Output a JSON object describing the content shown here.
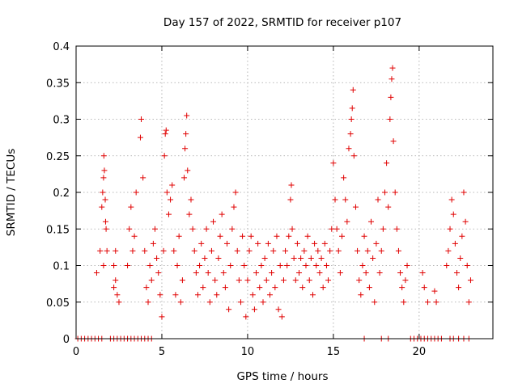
{
  "chart_data": {
    "type": "scatter",
    "title": "Day 157 of 2022, SRMTID for receiver p107",
    "xlabel": "GPS time / hours",
    "ylabel": "SRMTID / TECUs",
    "xlim": [
      0,
      24.3
    ],
    "ylim": [
      0,
      0.4
    ],
    "xticks": [
      "0",
      "5",
      "10",
      "15",
      "20"
    ],
    "xtick_values": [
      0,
      5,
      10,
      15,
      20
    ],
    "yticks": [
      "0",
      "0.05",
      "0.1",
      "0.15",
      "0.2",
      "0.25",
      "0.3",
      "0.35",
      "0.4"
    ],
    "ytick_values": [
      0,
      0.05,
      0.1,
      0.15,
      0.2,
      0.25,
      0.3,
      0.35,
      0.4
    ],
    "grid": true,
    "marker": "plus",
    "color": "#e00000",
    "series": [
      {
        "name": "SRMTID",
        "points": [
          [
            0.1,
            0
          ],
          [
            0.3,
            0
          ],
          [
            0.5,
            0
          ],
          [
            0.7,
            0
          ],
          [
            0.9,
            0
          ],
          [
            1.1,
            0
          ],
          [
            1.3,
            0
          ],
          [
            1.5,
            0
          ],
          [
            1.2,
            0.09
          ],
          [
            1.4,
            0.12
          ],
          [
            1.5,
            0.18
          ],
          [
            1.55,
            0.2
          ],
          [
            1.6,
            0.22
          ],
          [
            1.62,
            0.25
          ],
          [
            1.65,
            0.23
          ],
          [
            1.7,
            0.19
          ],
          [
            1.72,
            0.16
          ],
          [
            1.75,
            0.15
          ],
          [
            1.8,
            0.12
          ],
          [
            1.6,
            0.1
          ],
          [
            2.0,
            0
          ],
          [
            2.2,
            0
          ],
          [
            2.4,
            0
          ],
          [
            2.6,
            0
          ],
          [
            2.8,
            0
          ],
          [
            2.2,
            0.07
          ],
          [
            2.3,
            0.08
          ],
          [
            2.4,
            0.06
          ],
          [
            2.5,
            0.05
          ],
          [
            2.2,
            0.1
          ],
          [
            2.3,
            0.12
          ],
          [
            3.0,
            0.1
          ],
          [
            3.1,
            0.15
          ],
          [
            3.2,
            0.18
          ],
          [
            3.3,
            0.12
          ],
          [
            3.4,
            0.14
          ],
          [
            3.5,
            0.2
          ],
          [
            3.0,
            0
          ],
          [
            3.2,
            0
          ],
          [
            3.4,
            0
          ],
          [
            3.6,
            0
          ],
          [
            3.8,
            0
          ],
          [
            4.0,
            0
          ],
          [
            4.2,
            0
          ],
          [
            4.4,
            0
          ],
          [
            3.8,
            0.3
          ],
          [
            3.75,
            0.275
          ],
          [
            3.9,
            0.22
          ],
          [
            4.0,
            0.12
          ],
          [
            4.1,
            0.07
          ],
          [
            4.2,
            0.05
          ],
          [
            4.3,
            0.1
          ],
          [
            4.4,
            0.08
          ],
          [
            4.5,
            0.13
          ],
          [
            4.6,
            0.15
          ],
          [
            4.7,
            0.11
          ],
          [
            4.8,
            0.09
          ],
          [
            4.9,
            0.06
          ],
          [
            5.0,
            0.03
          ],
          [
            5.1,
            0.12
          ],
          [
            5.15,
            0.25
          ],
          [
            5.2,
            0.28
          ],
          [
            5.25,
            0.285
          ],
          [
            5.3,
            0.2
          ],
          [
            5.4,
            0.17
          ],
          [
            5.5,
            0.19
          ],
          [
            5.6,
            0.21
          ],
          [
            5.7,
            0.12
          ],
          [
            5.8,
            0.06
          ],
          [
            5.9,
            0.1
          ],
          [
            6.0,
            0.14
          ],
          [
            6.1,
            0.05
          ],
          [
            6.2,
            0.08
          ],
          [
            6.3,
            0.22
          ],
          [
            6.35,
            0.26
          ],
          [
            6.4,
            0.28
          ],
          [
            6.45,
            0.305
          ],
          [
            6.5,
            0.23
          ],
          [
            6.6,
            0.17
          ],
          [
            6.7,
            0.19
          ],
          [
            6.8,
            0.15
          ],
          [
            6.9,
            0.12
          ],
          [
            7.0,
            0.09
          ],
          [
            7.1,
            0.06
          ],
          [
            7.2,
            0.1
          ],
          [
            7.3,
            0.13
          ],
          [
            7.4,
            0.07
          ],
          [
            7.5,
            0.11
          ],
          [
            7.6,
            0.15
          ],
          [
            7.7,
            0.09
          ],
          [
            7.8,
            0.05
          ],
          [
            7.9,
            0.12
          ],
          [
            8.0,
            0.16
          ],
          [
            8.1,
            0.08
          ],
          [
            8.2,
            0.06
          ],
          [
            8.3,
            0.11
          ],
          [
            8.4,
            0.14
          ],
          [
            8.5,
            0.17
          ],
          [
            8.6,
            0.09
          ],
          [
            8.7,
            0.07
          ],
          [
            8.8,
            0.13
          ],
          [
            8.9,
            0.04
          ],
          [
            9.0,
            0.1
          ],
          [
            9.1,
            0.15
          ],
          [
            9.2,
            0.18
          ],
          [
            9.3,
            0.2
          ],
          [
            9.4,
            0.12
          ],
          [
            9.5,
            0.08
          ],
          [
            9.6,
            0.05
          ],
          [
            9.7,
            0.14
          ],
          [
            9.8,
            0.1
          ],
          [
            9.9,
            0.03
          ],
          [
            10.0,
            0.08
          ],
          [
            10.1,
            0.12
          ],
          [
            10.2,
            0.14
          ],
          [
            10.3,
            0.06
          ],
          [
            10.4,
            0.04
          ],
          [
            10.5,
            0.09
          ],
          [
            10.6,
            0.13
          ],
          [
            10.7,
            0.07
          ],
          [
            10.8,
            0.1
          ],
          [
            10.9,
            0.05
          ],
          [
            11.0,
            0.11
          ],
          [
            11.1,
            0.08
          ],
          [
            11.2,
            0.13
          ],
          [
            11.3,
            0.06
          ],
          [
            11.4,
            0.09
          ],
          [
            11.5,
            0.12
          ],
          [
            11.6,
            0.07
          ],
          [
            11.7,
            0.14
          ],
          [
            11.8,
            0.04
          ],
          [
            11.9,
            0.1
          ],
          [
            12.0,
            0.03
          ],
          [
            12.1,
            0.08
          ],
          [
            12.2,
            0.12
          ],
          [
            12.3,
            0.1
          ],
          [
            12.4,
            0.14
          ],
          [
            12.5,
            0.19
          ],
          [
            12.55,
            0.21
          ],
          [
            12.6,
            0.15
          ],
          [
            12.7,
            0.11
          ],
          [
            12.8,
            0.08
          ],
          [
            12.9,
            0.13
          ],
          [
            13.0,
            0.09
          ],
          [
            13.1,
            0.11
          ],
          [
            13.2,
            0.07
          ],
          [
            13.3,
            0.12
          ],
          [
            13.4,
            0.1
          ],
          [
            13.5,
            0.14
          ],
          [
            13.6,
            0.08
          ],
          [
            13.7,
            0.11
          ],
          [
            13.8,
            0.06
          ],
          [
            13.9,
            0.13
          ],
          [
            14.0,
            0.1
          ],
          [
            14.1,
            0.12
          ],
          [
            14.2,
            0.09
          ],
          [
            14.3,
            0.11
          ],
          [
            14.4,
            0.07
          ],
          [
            14.5,
            0.13
          ],
          [
            14.6,
            0.1
          ],
          [
            14.7,
            0.08
          ],
          [
            14.8,
            0.12
          ],
          [
            14.9,
            0.15
          ],
          [
            15.0,
            0.24
          ],
          [
            15.1,
            0.19
          ],
          [
            15.2,
            0.15
          ],
          [
            15.3,
            0.12
          ],
          [
            15.4,
            0.09
          ],
          [
            15.5,
            0.14
          ],
          [
            15.6,
            0.22
          ],
          [
            15.7,
            0.19
          ],
          [
            15.8,
            0.16
          ],
          [
            15.9,
            0.26
          ],
          [
            16.0,
            0.28
          ],
          [
            16.05,
            0.3
          ],
          [
            16.1,
            0.315
          ],
          [
            16.15,
            0.34
          ],
          [
            16.2,
            0.25
          ],
          [
            16.3,
            0.18
          ],
          [
            16.4,
            0.12
          ],
          [
            16.5,
            0.08
          ],
          [
            16.6,
            0.06
          ],
          [
            16.7,
            0.1
          ],
          [
            16.8,
            0.14
          ],
          [
            16.9,
            0.09
          ],
          [
            17.0,
            0.12
          ],
          [
            17.1,
            0.07
          ],
          [
            17.2,
            0.16
          ],
          [
            17.3,
            0.11
          ],
          [
            17.4,
            0.05
          ],
          [
            17.5,
            0.13
          ],
          [
            17.6,
            0.19
          ],
          [
            17.7,
            0.09
          ],
          [
            17.8,
            0.12
          ],
          [
            17.9,
            0.15
          ],
          [
            18.0,
            0.2
          ],
          [
            18.1,
            0.24
          ],
          [
            18.2,
            0.18
          ],
          [
            18.3,
            0.3
          ],
          [
            18.35,
            0.33
          ],
          [
            18.4,
            0.355
          ],
          [
            18.45,
            0.37
          ],
          [
            18.5,
            0.27
          ],
          [
            18.6,
            0.2
          ],
          [
            18.7,
            0.15
          ],
          [
            18.8,
            0.12
          ],
          [
            18.9,
            0.09
          ],
          [
            19.0,
            0.07
          ],
          [
            19.1,
            0.05
          ],
          [
            19.2,
            0.08
          ],
          [
            19.3,
            0.1
          ],
          [
            16.8,
            0
          ],
          [
            17.8,
            0
          ],
          [
            18.2,
            0
          ],
          [
            19.5,
            0
          ],
          [
            19.7,
            0
          ],
          [
            19.9,
            0
          ],
          [
            20.1,
            0
          ],
          [
            20.3,
            0
          ],
          [
            20.5,
            0
          ],
          [
            20.7,
            0
          ],
          [
            20.9,
            0
          ],
          [
            21.1,
            0
          ],
          [
            21.3,
            0
          ],
          [
            20.2,
            0.09
          ],
          [
            20.3,
            0.07
          ],
          [
            20.5,
            0.05
          ],
          [
            20.9,
            0.065
          ],
          [
            21.0,
            0.05
          ],
          [
            21.6,
            0.1
          ],
          [
            21.7,
            0.12
          ],
          [
            21.8,
            0.15
          ],
          [
            21.9,
            0.19
          ],
          [
            22.0,
            0.17
          ],
          [
            22.1,
            0.13
          ],
          [
            22.2,
            0.09
          ],
          [
            22.3,
            0.07
          ],
          [
            22.4,
            0.11
          ],
          [
            22.5,
            0.14
          ],
          [
            22.6,
            0.2
          ],
          [
            22.7,
            0.16
          ],
          [
            22.8,
            0.1
          ],
          [
            22.9,
            0.05
          ],
          [
            23.0,
            0.08
          ],
          [
            21.8,
            0
          ],
          [
            22.0,
            0
          ],
          [
            22.3,
            0
          ],
          [
            22.6,
            0
          ],
          [
            22.9,
            0
          ]
        ]
      }
    ]
  }
}
